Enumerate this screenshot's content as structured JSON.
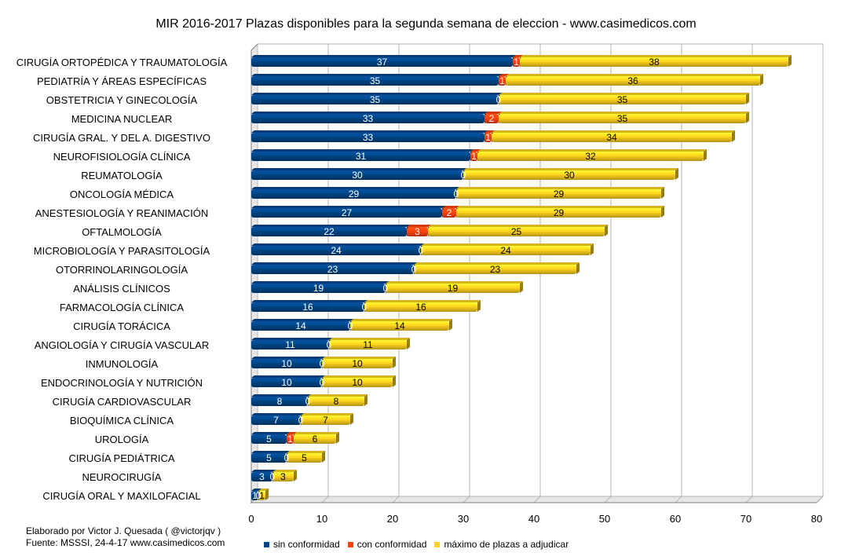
{
  "colors": {
    "sin": "#004586",
    "con": "#ff420e",
    "max": "#ffd320",
    "grid": "#b3b3b3",
    "axis": "#808080"
  },
  "credit": {
    "line1": "Elaborado por Victor J. Quesada ( @victorjqv )",
    "line2": "Fuente: MSSSI, 24-4-17 www.casimedicos.com"
  },
  "chart_data": {
    "type": "bar",
    "orientation": "horizontal",
    "stacked": true,
    "title": "MIR 2016-2017 Plazas disponibles para la segunda semana de eleccion - www.casimedicos.com",
    "xlim": [
      0,
      80
    ],
    "xticks": [
      0,
      10,
      20,
      30,
      40,
      50,
      60,
      70,
      80
    ],
    "grid": true,
    "legend_position": "bottom",
    "categories": [
      "CIRUGÍA ORTOPÉDICA Y TRAUMATOLOGÍA",
      "PEDIATRÍA Y ÁREAS ESPECÍFICAS",
      "OBSTETRICIA Y GINECOLOGÍA",
      "MEDICINA NUCLEAR",
      "CIRUGÍA GRAL. Y DEL A. DIGESTIVO",
      "NEUROFISIOLOGÍA CLÍNICA",
      "REUMATOLOGÍA",
      "ONCOLOGÍA MÉDICA",
      "ANESTESIOLOGÍA Y REANIMACIÓN",
      "OFTALMOLOGÍA",
      "MICROBIOLOGÍA Y PARASITOLOGÍA",
      "OTORRINOLARINGOLOGÍA",
      "ANÁLISIS CLÍNICOS",
      "FARMACOLOGÍA CLÍNICA",
      "CIRUGÍA TORÁCICA",
      "ANGIOLOGÍA Y CIRUGÍA VASCULAR",
      "INMUNOLOGÍA",
      "ENDOCRINOLOGÍA Y NUTRICIÓN",
      "CIRUGÍA CARDIOVASCULAR",
      "BIOQUÍMICA CLÍNICA",
      "UROLOGÍA",
      "CIRUGÍA PEDIÁTRICA",
      "NEUROCIRUGÍA",
      "CIRUGÍA ORAL Y MAXILOFACIAL"
    ],
    "series": [
      {
        "name": "sin conformidad",
        "color": "#004586",
        "values": [
          37,
          35,
          35,
          33,
          33,
          31,
          30,
          29,
          27,
          22,
          24,
          23,
          19,
          16,
          14,
          11,
          10,
          10,
          8,
          7,
          5,
          5,
          3,
          1
        ]
      },
      {
        "name": "con conformidad",
        "color": "#ff420e",
        "values": [
          1,
          1,
          0,
          2,
          1,
          1,
          0,
          0,
          2,
          3,
          0,
          0,
          0,
          0,
          0,
          0,
          0,
          0,
          0,
          0,
          1,
          0,
          0,
          0
        ]
      },
      {
        "name": "máximo de plazas a adjudicar",
        "color": "#ffd320",
        "values": [
          38,
          36,
          35,
          35,
          34,
          32,
          30,
          29,
          29,
          25,
          24,
          23,
          19,
          16,
          14,
          11,
          10,
          10,
          8,
          7,
          6,
          5,
          3,
          1
        ]
      }
    ]
  }
}
